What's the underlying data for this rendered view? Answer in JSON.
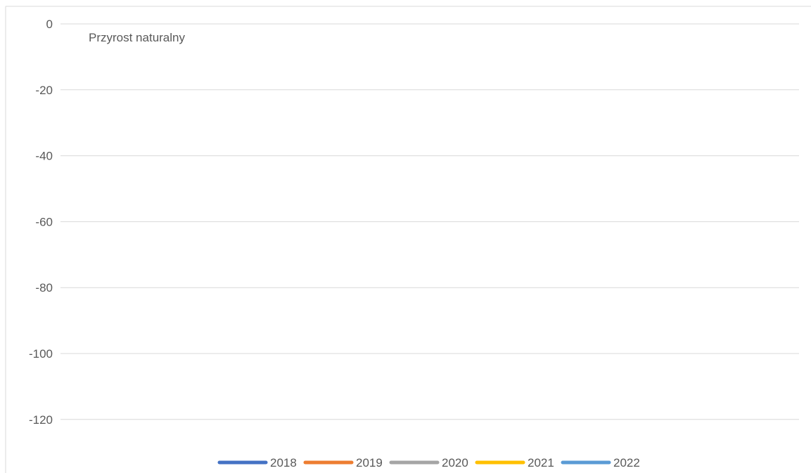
{
  "chart_data": {
    "type": "line",
    "title": "Przyrost naturalny",
    "xlabel": "",
    "ylabel": "",
    "ylim": [
      -130,
      0
    ],
    "yticks": [
      0,
      -20,
      -40,
      -60,
      -80,
      -100,
      -120
    ],
    "grid": true,
    "legend_position": "bottom",
    "series": [
      {
        "name": "2018",
        "color": "#4472C4",
        "values": []
      },
      {
        "name": "2019",
        "color": "#ED7D31",
        "values": []
      },
      {
        "name": "2020",
        "color": "#A5A5A5",
        "values": []
      },
      {
        "name": "2021",
        "color": "#FFC000",
        "values": []
      },
      {
        "name": "2022",
        "color": "#5B9BD5",
        "values": []
      }
    ]
  }
}
